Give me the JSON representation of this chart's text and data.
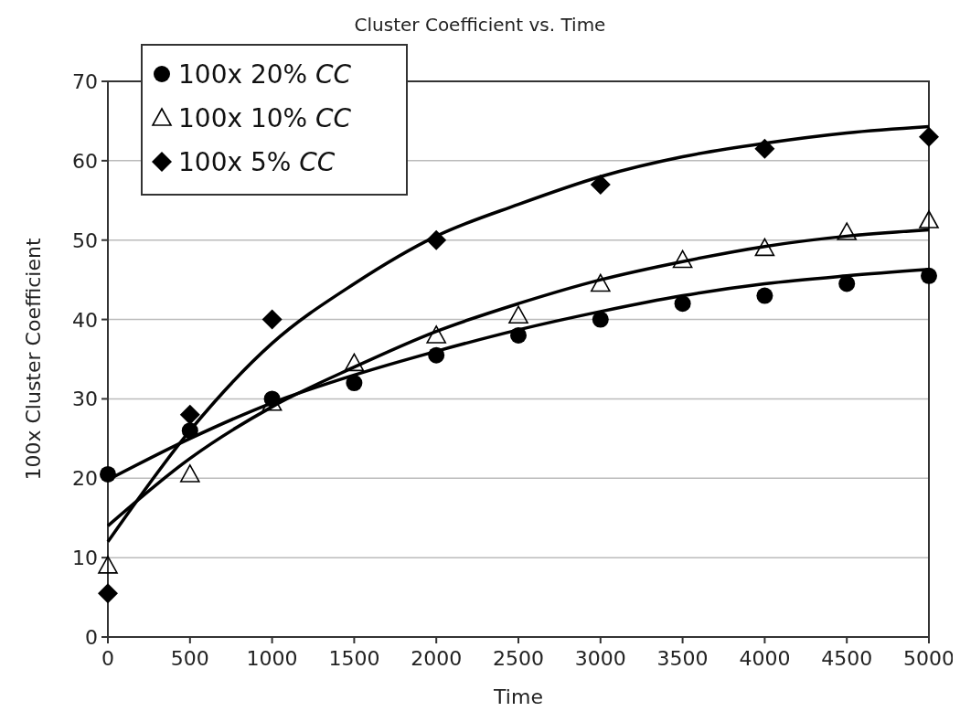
{
  "chart_data": {
    "type": "scatter",
    "title": "Cluster Coefficient vs. Time",
    "xlabel": "Time",
    "ylabel": "100x Cluster Coefficient",
    "xlim": [
      0,
      5000
    ],
    "xticks": [
      0,
      500,
      1000,
      1500,
      2000,
      2500,
      3000,
      3500,
      4000,
      4500,
      5000
    ],
    "ylim": [
      0,
      70
    ],
    "yticks": [
      0,
      10,
      20,
      30,
      40,
      50,
      60,
      70
    ],
    "grid": "y",
    "legend": "top left",
    "series": [
      {
        "name": "100x 20% CC",
        "color": "#000000",
        "marker": "circle",
        "x": [
          0,
          500,
          1000,
          1500,
          2000,
          2500,
          3000,
          3500,
          4000,
          4500,
          5000
        ],
        "values": [
          20.5,
          26,
          30,
          32,
          35.5,
          38,
          40,
          42,
          43,
          44.5,
          45.5
        ]
      },
      {
        "name": "100x 10% CC",
        "color": "#000000",
        "marker": "triangle",
        "x": [
          0,
          500,
          1000,
          1500,
          2000,
          2500,
          3000,
          3500,
          4000,
          4500,
          5000
        ],
        "values": [
          9,
          20.5,
          29.5,
          34.5,
          38,
          40.5,
          44.5,
          47.5,
          49,
          51,
          52.5
        ]
      },
      {
        "name": "100x 5% CC",
        "color": "#000000",
        "marker": "diamond",
        "x": [
          0,
          500,
          1000,
          2000,
          3000,
          4000,
          5000
        ],
        "values": [
          5.5,
          28,
          40,
          50,
          57,
          61.5,
          63
        ]
      },
      {
        "type": "line",
        "color": "#000000",
        "marker": "none",
        "x": [
          0,
          500,
          1000,
          1500,
          2000,
          2500,
          3000,
          3500,
          4000,
          4500,
          5000
        ],
        "values": [
          19.8,
          25,
          29.5,
          33,
          36,
          38.7,
          41,
          43,
          44.5,
          45.5,
          46.3
        ]
      },
      {
        "type": "line",
        "color": "#000000",
        "marker": "none",
        "x": [
          0,
          500,
          1000,
          1500,
          2000,
          2500,
          3000,
          3500,
          4000,
          4500,
          5000
        ],
        "values": [
          14,
          22.5,
          29,
          34,
          38.5,
          42,
          45,
          47.3,
          49.2,
          50.5,
          51.3
        ]
      },
      {
        "type": "line",
        "color": "#000000",
        "marker": "none",
        "x": [
          0,
          500,
          1000,
          1500,
          2000,
          2500,
          3000,
          3500,
          4000,
          4500,
          5000
        ],
        "values": [
          12,
          26,
          37,
          44.5,
          50.5,
          54.5,
          58,
          60.5,
          62.2,
          63.5,
          64.3
        ]
      }
    ]
  }
}
